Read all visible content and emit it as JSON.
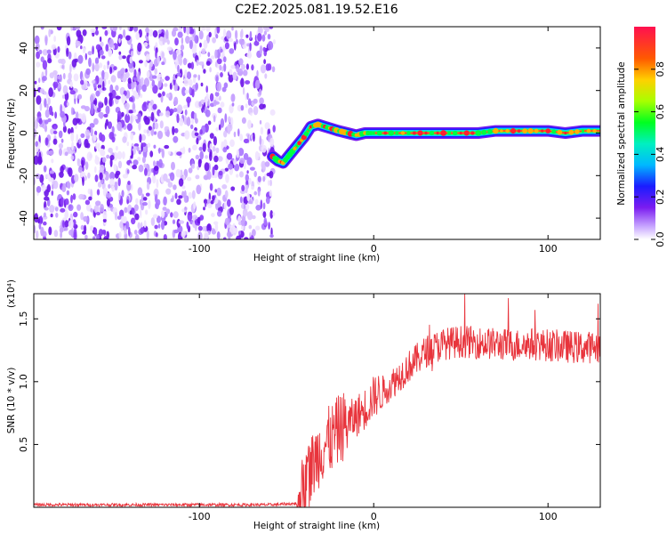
{
  "title": "C2E2.2025.081.19.52.E16",
  "chart_data": [
    {
      "type": "heatmap",
      "xlabel": "Height of straight line (km)",
      "ylabel": "Frequency (Hz)",
      "xlim": [
        -195,
        130
      ],
      "ylim": [
        -50,
        50
      ],
      "xticks": [
        -100,
        0,
        100
      ],
      "yticks": [
        -40,
        -20,
        0,
        20,
        40
      ],
      "noise_region_x": [
        -195,
        -57
      ],
      "ridge": {
        "x": [
          -58,
          -55,
          -52,
          -48,
          -44,
          -40,
          -36,
          -32,
          -28,
          -24,
          -20,
          -15,
          -10,
          -5,
          0,
          10,
          20,
          30,
          40,
          50,
          60,
          70,
          80,
          90,
          100,
          110,
          120,
          130
        ],
        "frequency": [
          -11,
          -13,
          -14,
          -10,
          -6,
          -2,
          3,
          4,
          3,
          2,
          1,
          0,
          -1,
          0,
          0,
          0,
          0,
          0,
          0,
          0,
          0,
          1,
          1,
          1,
          1,
          0,
          1,
          1
        ]
      },
      "colorbar": {
        "label": "Normalized spectral amplitude",
        "range": [
          0,
          1
        ],
        "ticks": [
          0.0,
          0.2,
          0.4,
          0.6,
          0.8
        ]
      }
    },
    {
      "type": "line",
      "xlabel": "Height of straight line (km)",
      "ylabel": "SNR (10 * v/v)",
      "scale_label": "(x10⁴)",
      "xlim": [
        -195,
        130
      ],
      "ylim": [
        0,
        1.7
      ],
      "xticks": [
        -100,
        0,
        100
      ],
      "yticks": [
        0.5,
        1.0,
        1.5
      ],
      "color": "#e8343c",
      "series": [
        {
          "x": [
            -195,
            -150,
            -100,
            -60,
            -44,
            -40,
            -36,
            -32,
            -28,
            -24,
            -20,
            -16,
            -12,
            -8,
            -4,
            0,
            5,
            10,
            15,
            20,
            25,
            30,
            40,
            50,
            60,
            70,
            80,
            90,
            100,
            110,
            120,
            130
          ],
          "values": [
            0.02,
            0.02,
            0.02,
            0.02,
            0.03,
            0.15,
            0.3,
            0.42,
            0.5,
            0.55,
            0.62,
            0.66,
            0.7,
            0.75,
            0.8,
            0.88,
            0.92,
            0.98,
            1.05,
            1.12,
            1.18,
            1.24,
            1.3,
            1.32,
            1.31,
            1.3,
            1.29,
            1.3,
            1.29,
            1.28,
            1.27,
            1.28
          ]
        }
      ]
    }
  ]
}
